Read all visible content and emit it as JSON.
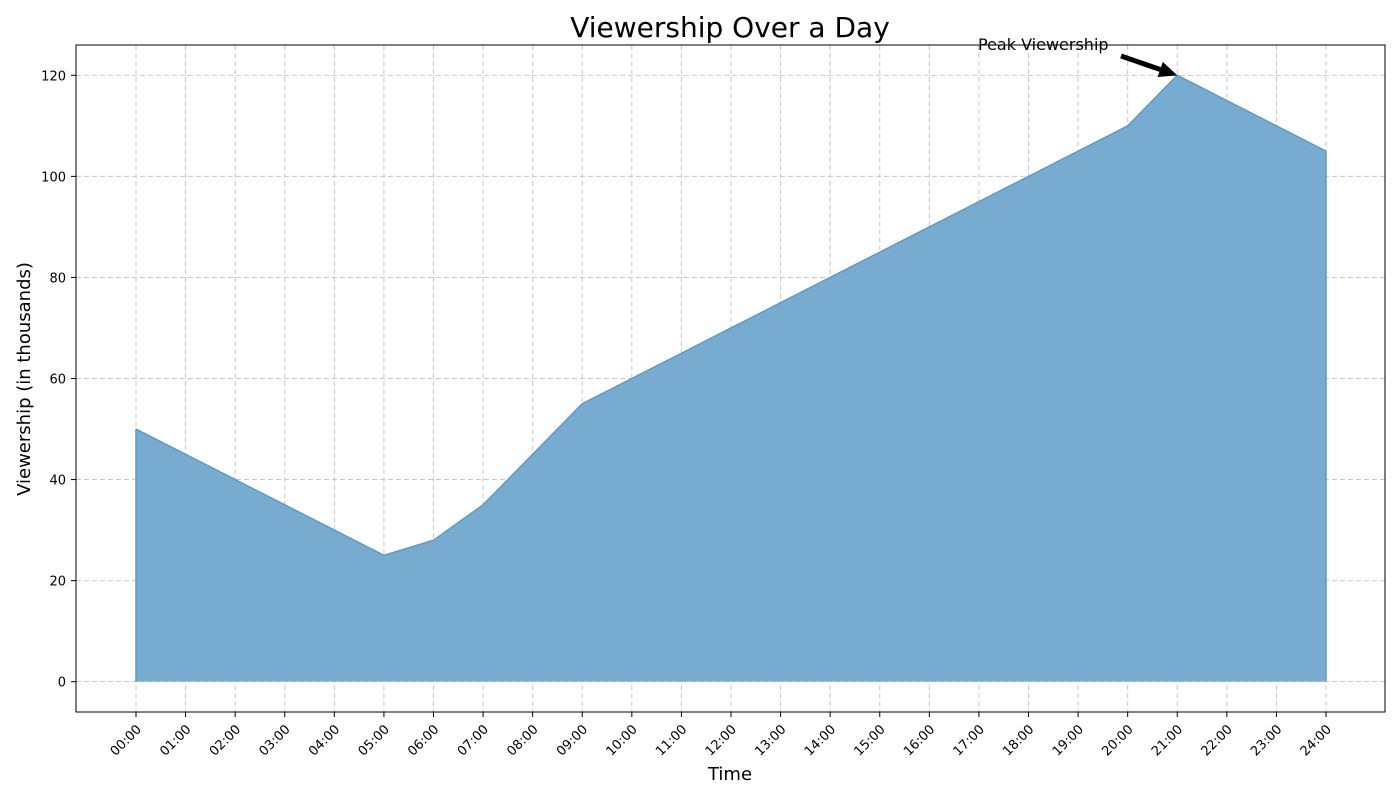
{
  "chart_data": {
    "type": "area",
    "title": "Viewership Over a Day",
    "xlabel": "Time",
    "ylabel": "Viewership (in thousands)",
    "categories": [
      "00:00",
      "01:00",
      "02:00",
      "03:00",
      "04:00",
      "05:00",
      "06:00",
      "07:00",
      "08:00",
      "09:00",
      "10:00",
      "11:00",
      "12:00",
      "13:00",
      "14:00",
      "15:00",
      "16:00",
      "17:00",
      "18:00",
      "19:00",
      "20:00",
      "21:00",
      "22:00",
      "23:00",
      "24:00"
    ],
    "values": [
      50,
      45,
      40,
      35,
      30,
      25,
      28,
      35,
      45,
      55,
      60,
      65,
      70,
      75,
      80,
      85,
      90,
      95,
      100,
      105,
      110,
      120,
      115,
      110,
      105
    ],
    "ylim": [
      -6,
      126
    ],
    "yticks": [
      0,
      20,
      40,
      60,
      80,
      100,
      120
    ],
    "grid": true,
    "fill_color": "#77acd0",
    "line_color": "#5b9bc7",
    "annotation": {
      "text": "Peak Viewership",
      "target_category": "21:00",
      "target_value": 120
    }
  }
}
